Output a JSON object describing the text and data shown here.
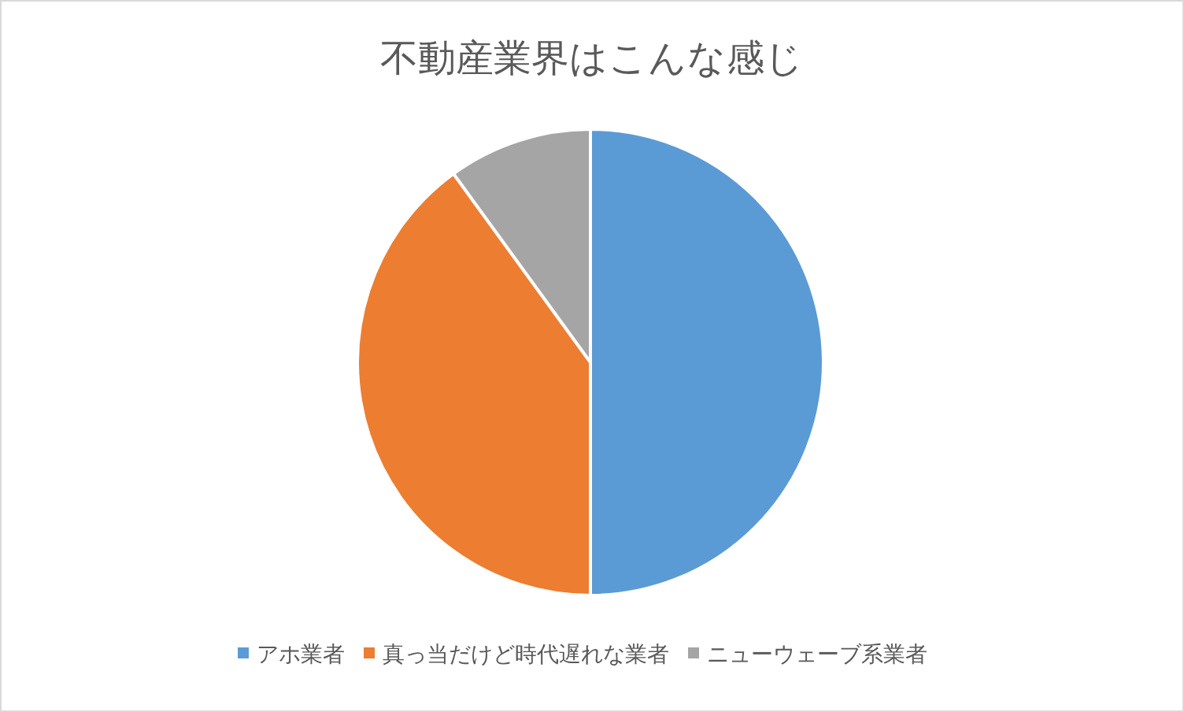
{
  "chart_data": {
    "type": "pie",
    "title": "不動産業界はこんな感じ",
    "categories": [
      "アホ業者",
      "真っ当だけど時代遅れな業者",
      "ニューウェーブ系業者"
    ],
    "values": [
      50,
      40,
      10
    ],
    "colors": [
      "#5b9bd5",
      "#ed7d31",
      "#a5a5a5"
    ],
    "legend": "bottom"
  }
}
